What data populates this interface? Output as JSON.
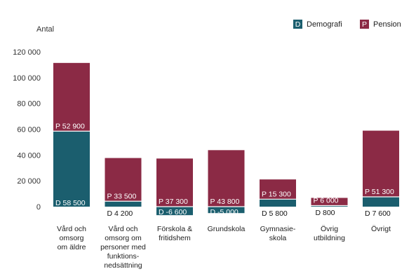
{
  "chart_data": {
    "type": "bar",
    "stacked": true,
    "ylabel": "Antal",
    "ylim": [
      -10000,
      120000
    ],
    "yticks": [
      {
        "value": 0,
        "label": "0"
      },
      {
        "value": 20000,
        "label": "20 000"
      },
      {
        "value": 40000,
        "label": "40 000"
      },
      {
        "value": 60000,
        "label": "60 000"
      },
      {
        "value": 80000,
        "label": "80 000"
      },
      {
        "value": 100000,
        "label": "100 000"
      },
      {
        "value": 120000,
        "label": "120 000"
      }
    ],
    "grid": false,
    "legend_position": "top-right",
    "legend": [
      {
        "key": "D",
        "name": "Demografi",
        "color": "#1b5e6e"
      },
      {
        "key": "P",
        "name": "Pension",
        "color": "#8b2a45"
      }
    ],
    "categories": [
      [
        "Vård och",
        "omsorg",
        "om äldre"
      ],
      [
        "Vård och",
        "omsorg om",
        "personer med",
        "funktions-",
        "nedsättning"
      ],
      [
        "Förskola &",
        "fritidshem"
      ],
      [
        "Grundskola"
      ],
      [
        "Gymnasie-",
        "skola"
      ],
      [
        "Övrig",
        "utbildning"
      ],
      [
        "Övrigt"
      ]
    ],
    "series": [
      {
        "name": "Demografi",
        "values": [
          58500,
          4200,
          -6600,
          -5000,
          5800,
          800,
          7600
        ],
        "labels": [
          "D  58 500",
          "D  4 200",
          "D  -6 600",
          "D  -5 000",
          "D  5 800",
          "D  800",
          "D  7 600"
        ]
      },
      {
        "name": "Pension",
        "values": [
          52900,
          33500,
          37300,
          43800,
          15300,
          6000,
          51300
        ],
        "labels": [
          "P  52 900",
          "P  33 500",
          "P  37 300",
          "P  43 800",
          "P  15 300",
          "P  6 000",
          "P  51 300"
        ]
      }
    ]
  }
}
